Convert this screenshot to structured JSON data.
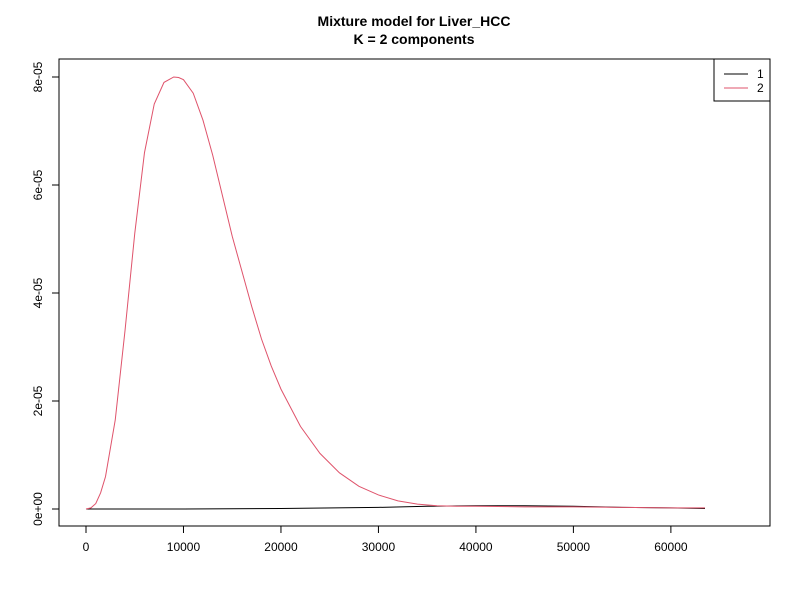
{
  "chart_data": {
    "type": "line",
    "title": "Mixture model for Liver_HCC",
    "subtitle": "K = 2 components",
    "xlabel": "",
    "ylabel": "",
    "xlim": [
      0,
      63500
    ],
    "ylim": [
      0,
      8e-05
    ],
    "x_ticks": [
      0,
      10000,
      20000,
      30000,
      40000,
      50000,
      60000
    ],
    "x_tick_labels": [
      "0",
      "10000",
      "20000",
      "30000",
      "40000",
      "50000",
      "60000"
    ],
    "y_ticks": [
      0,
      2e-05,
      4e-05,
      6e-05,
      8e-05
    ],
    "y_tick_labels": [
      "0e+00",
      "2e-05",
      "4e-05",
      "6e-05",
      "8e-05"
    ],
    "grid": false,
    "legend_position": "top-right",
    "series": [
      {
        "name": "1",
        "color": "#000000",
        "x": [
          0,
          10000,
          20000,
          30000,
          35000,
          40000,
          45000,
          50000,
          55000,
          60000,
          63500
        ],
        "y": [
          0,
          0,
          1e-07,
          3e-07,
          5e-07,
          6e-07,
          6e-07,
          5e-07,
          3e-07,
          2e-07,
          1e-07
        ]
      },
      {
        "name": "2",
        "color": "#DF536B",
        "x": [
          0,
          500,
          1000,
          1500,
          2000,
          3000,
          4000,
          5000,
          6000,
          7000,
          8000,
          9000,
          9500,
          10000,
          11000,
          12000,
          13000,
          14000,
          15000,
          16000,
          17000,
          18000,
          19000,
          20000,
          22000,
          24000,
          26000,
          28000,
          30000,
          32000,
          34000,
          36000,
          38000,
          40000,
          45000,
          50000,
          55000,
          60000,
          63500
        ],
        "y": [
          0,
          2e-07,
          1e-06,
          3e-06,
          6e-06,
          1.65e-05,
          3.3e-05,
          5.1e-05,
          6.6e-05,
          7.5e-05,
          7.9e-05,
          8e-05,
          7.99e-05,
          7.95e-05,
          7.7e-05,
          7.2e-05,
          6.55e-05,
          5.8e-05,
          5.05e-05,
          4.4e-05,
          3.75e-05,
          3.15e-05,
          2.65e-05,
          2.22e-05,
          1.53e-05,
          1.03e-05,
          6.7e-06,
          4.2e-06,
          2.6e-06,
          1.5e-06,
          9e-07,
          6e-07,
          5e-07,
          5e-07,
          4e-07,
          4e-07,
          3e-07,
          2e-07,
          2e-07
        ]
      }
    ]
  }
}
